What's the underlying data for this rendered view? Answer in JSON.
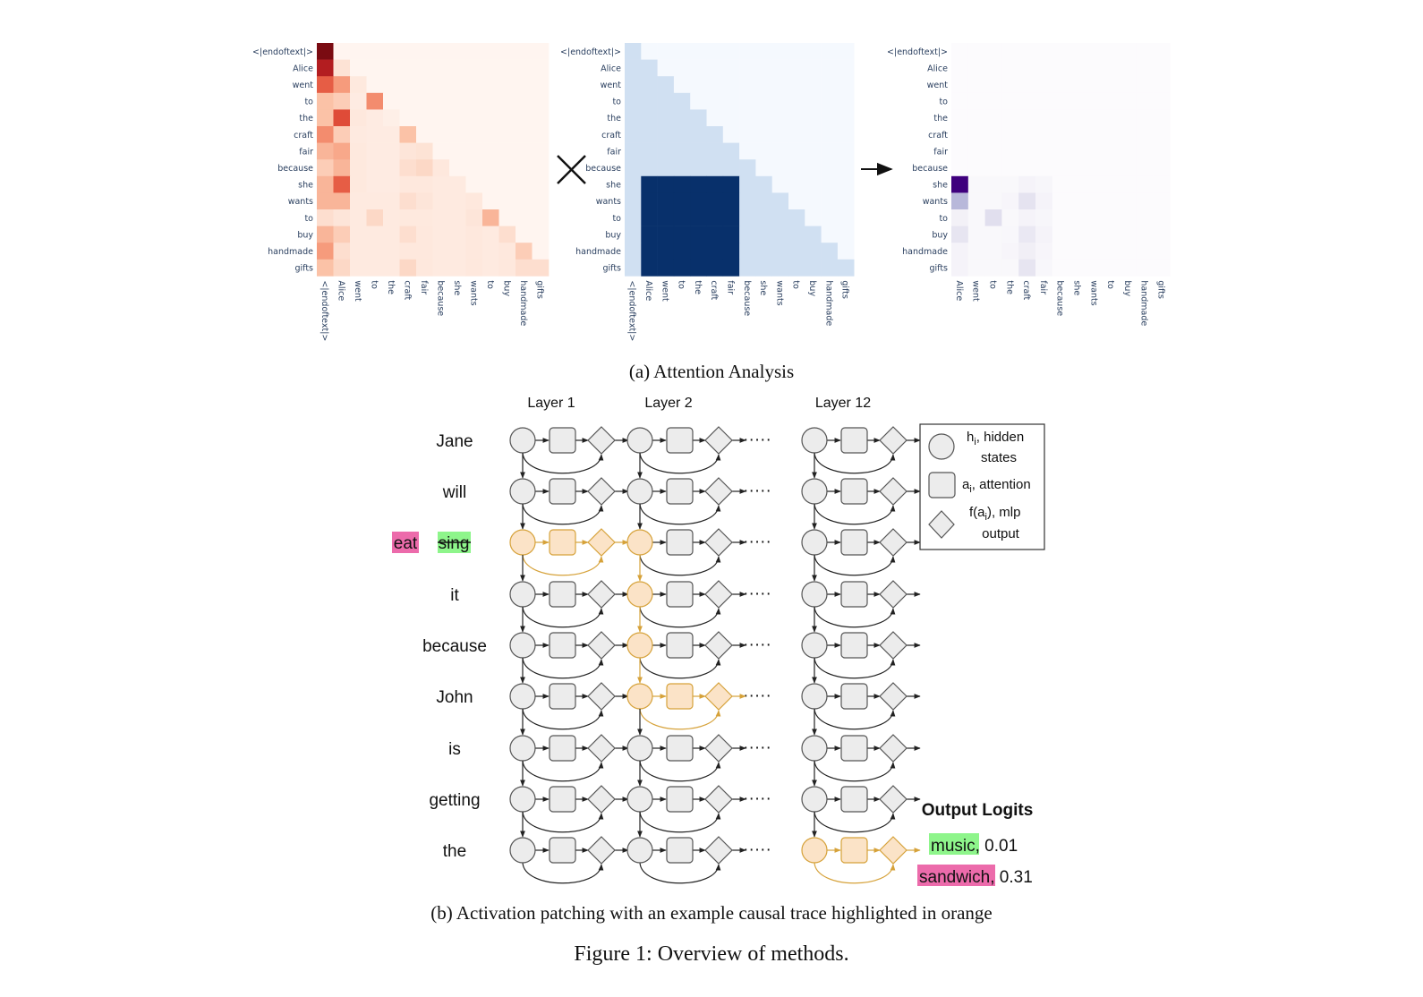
{
  "tokens": [
    "<|endoftext|>",
    "Alice",
    "went",
    "to",
    "the",
    "craft",
    "fair",
    "because",
    "she",
    "wants",
    "to",
    "buy",
    "handmade",
    "gifts"
  ],
  "colors": {
    "reds": "#fff5f0,#fde3d6,#fbc2a8,#f69b7c,#ec6f52,#d9392c,#b31d20,#7a0b12",
    "blues_light": "#d0e0f2",
    "blues_bg": "#f5f9fe",
    "blues_dark": "#08306b",
    "purples": "#fcfbfd,#efedf5,#dcdaec,#bcbddd,#9e9ac8,#7a6db5,#5a329a,#3f007d",
    "grey_fill": "#ececec",
    "grey_stroke": "#555555",
    "orange_fill": "#fbe3c7",
    "orange_stroke": "#d6a23a",
    "green_highlight": "#8ef58b",
    "pink_highlight": "#ec6bab"
  },
  "chart_data": [
    {
      "type": "heatmap",
      "name": "attention",
      "colorscale": "Reds",
      "row_labels": [
        "<|endoftext|>",
        "Alice",
        "went",
        "to",
        "the",
        "craft",
        "fair",
        "because",
        "she",
        "wants",
        "to",
        "buy",
        "handmade",
        "gifts"
      ],
      "col_labels": [
        "<|endoftext|>",
        "Alice",
        "went",
        "to",
        "the",
        "craft",
        "fair",
        "because",
        "she",
        "wants",
        "to",
        "buy",
        "handmade",
        "gifts"
      ],
      "z": [
        [
          1.0,
          0,
          0,
          0,
          0,
          0,
          0,
          0,
          0,
          0,
          0,
          0,
          0,
          0
        ],
        [
          0.85,
          0.1,
          0,
          0,
          0,
          0,
          0,
          0,
          0,
          0,
          0,
          0,
          0,
          0
        ],
        [
          0.6,
          0.4,
          0.05,
          0,
          0,
          0,
          0,
          0,
          0,
          0,
          0,
          0,
          0,
          0
        ],
        [
          0.25,
          0.2,
          0.03,
          0.45,
          0,
          0,
          0,
          0,
          0,
          0,
          0,
          0,
          0,
          0
        ],
        [
          0.25,
          0.65,
          0.06,
          0.03,
          0,
          0,
          0,
          0,
          0,
          0,
          0,
          0,
          0,
          0
        ],
        [
          0.45,
          0.2,
          0.04,
          0.03,
          0.03,
          0.25,
          0,
          0,
          0,
          0,
          0,
          0,
          0,
          0
        ],
        [
          0.3,
          0.35,
          0.05,
          0.03,
          0.03,
          0.08,
          0.1,
          0,
          0,
          0,
          0,
          0,
          0,
          0
        ],
        [
          0.2,
          0.3,
          0.05,
          0.03,
          0.03,
          0.12,
          0.15,
          0.06,
          0,
          0,
          0,
          0,
          0,
          0
        ],
        [
          0.3,
          0.6,
          0.05,
          0.03,
          0.03,
          0.06,
          0.06,
          0.04,
          0.04,
          0,
          0,
          0,
          0,
          0
        ],
        [
          0.3,
          0.3,
          0.04,
          0.04,
          0.04,
          0.12,
          0.08,
          0.04,
          0.04,
          0.06,
          0,
          0,
          0,
          0
        ],
        [
          0.12,
          0.08,
          0.04,
          0.15,
          0.04,
          0.05,
          0.05,
          0.04,
          0.04,
          0.08,
          0.3,
          0,
          0,
          0
        ],
        [
          0.3,
          0.2,
          0.04,
          0.04,
          0.04,
          0.12,
          0.06,
          0.04,
          0.04,
          0.06,
          0.04,
          0.12,
          0,
          0
        ],
        [
          0.4,
          0.12,
          0.04,
          0.04,
          0.04,
          0.06,
          0.06,
          0.04,
          0.04,
          0.06,
          0.04,
          0.06,
          0.2,
          0
        ],
        [
          0.25,
          0.15,
          0.04,
          0.04,
          0.04,
          0.15,
          0.06,
          0.04,
          0.04,
          0.06,
          0.04,
          0.06,
          0.12,
          0.12
        ]
      ]
    },
    {
      "type": "heatmap",
      "name": "mask",
      "colorscale": "Blues",
      "row_labels": [
        "<|endoftext|>",
        "Alice",
        "went",
        "to",
        "the",
        "craft",
        "fair",
        "because",
        "she",
        "wants",
        "to",
        "buy",
        "handmade",
        "gifts"
      ],
      "col_labels": [
        "<|endoftext|>",
        "Alice",
        "went",
        "to",
        "the",
        "craft",
        "fair",
        "because",
        "she",
        "wants",
        "to",
        "buy",
        "handmade",
        "gifts"
      ],
      "z": [
        [
          1,
          0,
          0,
          0,
          0,
          0,
          0,
          0,
          0,
          0,
          0,
          0,
          0,
          0
        ],
        [
          1,
          1,
          0,
          0,
          0,
          0,
          0,
          0,
          0,
          0,
          0,
          0,
          0,
          0
        ],
        [
          1,
          1,
          1,
          0,
          0,
          0,
          0,
          0,
          0,
          0,
          0,
          0,
          0,
          0
        ],
        [
          1,
          1,
          1,
          1,
          0,
          0,
          0,
          0,
          0,
          0,
          0,
          0,
          0,
          0
        ],
        [
          1,
          1,
          1,
          1,
          1,
          0,
          0,
          0,
          0,
          0,
          0,
          0,
          0,
          0
        ],
        [
          1,
          1,
          1,
          1,
          1,
          1,
          0,
          0,
          0,
          0,
          0,
          0,
          0,
          0
        ],
        [
          1,
          1,
          1,
          1,
          1,
          1,
          1,
          0,
          0,
          0,
          0,
          0,
          0,
          0
        ],
        [
          1,
          1,
          1,
          1,
          1,
          1,
          1,
          1,
          0,
          0,
          0,
          0,
          0,
          0
        ],
        [
          1,
          2,
          2,
          2,
          2,
          2,
          2,
          1,
          1,
          0,
          0,
          0,
          0,
          0
        ],
        [
          1,
          2,
          2,
          2,
          2,
          2,
          2,
          1,
          1,
          1,
          0,
          0,
          0,
          0
        ],
        [
          1,
          2,
          2,
          2,
          2,
          2,
          2,
          1,
          1,
          1,
          1,
          0,
          0,
          0
        ],
        [
          1,
          2,
          2,
          2,
          2,
          2,
          2,
          1,
          1,
          1,
          1,
          1,
          0,
          0
        ],
        [
          1,
          2,
          2,
          2,
          2,
          2,
          2,
          1,
          1,
          1,
          1,
          1,
          1,
          0
        ],
        [
          1,
          2,
          2,
          2,
          2,
          2,
          2,
          1,
          1,
          1,
          1,
          1,
          1,
          1
        ]
      ]
    },
    {
      "type": "heatmap",
      "name": "result",
      "colorscale": "Purples",
      "row_labels": [
        "<|endoftext|>",
        "Alice",
        "went",
        "to",
        "the",
        "craft",
        "fair",
        "because",
        "she",
        "wants",
        "to",
        "buy",
        "handmade",
        "gifts"
      ],
      "col_labels": [
        "Alice",
        "went",
        "to",
        "the",
        "craft",
        "fair",
        "because",
        "she",
        "wants",
        "to",
        "buy",
        "handmade",
        "gifts"
      ],
      "z": [
        [
          0,
          0,
          0,
          0,
          0,
          0,
          0,
          0,
          0,
          0,
          0,
          0,
          0
        ],
        [
          0,
          0,
          0,
          0,
          0,
          0,
          0,
          0,
          0,
          0,
          0,
          0,
          0
        ],
        [
          0,
          0,
          0,
          0,
          0,
          0,
          0,
          0,
          0,
          0,
          0,
          0,
          0
        ],
        [
          0,
          0,
          0,
          0,
          0,
          0,
          0,
          0,
          0,
          0,
          0,
          0,
          0
        ],
        [
          0,
          0,
          0,
          0,
          0,
          0,
          0,
          0,
          0,
          0,
          0,
          0,
          0
        ],
        [
          0,
          0,
          0,
          0,
          0,
          0,
          0,
          0,
          0,
          0,
          0,
          0,
          0
        ],
        [
          0,
          0,
          0,
          0,
          0,
          0,
          0,
          0,
          0,
          0,
          0,
          0,
          0
        ],
        [
          0,
          0,
          0,
          0,
          0,
          0,
          0,
          0,
          0,
          0,
          0,
          0,
          0
        ],
        [
          1.0,
          0.03,
          0.03,
          0.03,
          0.08,
          0.05,
          0,
          0,
          0,
          0,
          0,
          0,
          0
        ],
        [
          0.45,
          0.03,
          0.03,
          0.06,
          0.22,
          0.08,
          0,
          0,
          0,
          0,
          0,
          0,
          0
        ],
        [
          0.1,
          0.03,
          0.25,
          0.03,
          0.08,
          0.05,
          0,
          0,
          0,
          0,
          0,
          0,
          0
        ],
        [
          0.2,
          0.03,
          0.03,
          0.04,
          0.18,
          0.08,
          0,
          0,
          0,
          0,
          0,
          0,
          0
        ],
        [
          0.08,
          0.03,
          0.03,
          0.06,
          0.12,
          0.06,
          0,
          0,
          0,
          0,
          0,
          0,
          0
        ],
        [
          0.08,
          0.03,
          0.03,
          0.03,
          0.2,
          0.04,
          0,
          0,
          0,
          0,
          0,
          0,
          0
        ]
      ]
    }
  ],
  "caption_a": "(a) Attention Analysis",
  "diagram": {
    "layer_headers": [
      "Layer 1",
      "Layer 2",
      "Layer 12"
    ],
    "dots": "·····",
    "words": [
      "Jane",
      "will",
      "",
      "it",
      "because",
      "John",
      "is",
      "getting",
      "the"
    ],
    "corrupt_word": "eat",
    "struck_word": "sing",
    "highlighted_cells": [
      [
        2,
        0,
        "full"
      ],
      [
        2,
        1,
        "circle"
      ],
      [
        3,
        1,
        "circle"
      ],
      [
        4,
        1,
        "circle"
      ],
      [
        5,
        1,
        "full"
      ],
      [
        8,
        2,
        "full"
      ]
    ],
    "legend": {
      "hidden_a": "h",
      "hidden_sub": "i",
      "hidden_b": ", hidden",
      "hidden_c": "states",
      "attn_a": "a",
      "attn_sub": "i",
      "attn_b": ", attention",
      "mlp_a": "f(a",
      "mlp_sub": "i",
      "mlp_b": "), mlp",
      "mlp_c": "output"
    },
    "output": {
      "title": "Output Logits",
      "w1": "music",
      "v1": ", 0.01",
      "w2": "sandwich",
      "v2": ", 0.31"
    }
  },
  "caption_b": "(b) Activation patching with an example causal trace highlighted in orange",
  "figure_caption": "Figure 1: Overview of methods."
}
